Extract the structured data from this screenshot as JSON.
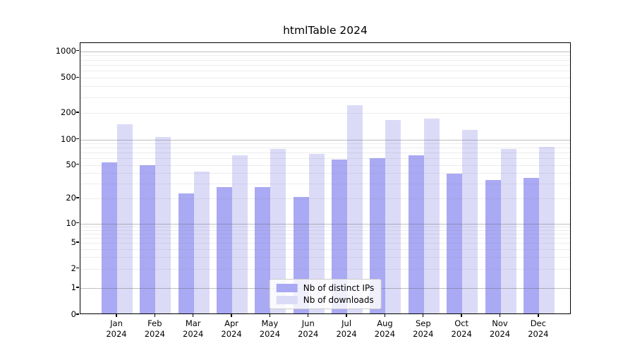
{
  "chart_data": {
    "type": "bar",
    "title": "htmlTable 2024",
    "categories": [
      "Jan",
      "Feb",
      "Mar",
      "Apr",
      "May",
      "Jun",
      "Jul",
      "Aug",
      "Sep",
      "Oct",
      "Nov",
      "Dec"
    ],
    "category_year": "2024",
    "series": [
      {
        "name": "Nb of distinct IPs",
        "color": "#a9a9f4",
        "values": [
          52,
          48,
          22,
          26,
          26,
          20,
          56,
          58,
          62,
          38,
          32,
          34
        ]
      },
      {
        "name": "Nb of downloads",
        "color": "#dbdbf8",
        "values": [
          145,
          104,
          40,
          63,
          74,
          65,
          235,
          160,
          167,
          124,
          74,
          79
        ]
      }
    ],
    "y_ticks": [
      0,
      1,
      2,
      5,
      10,
      20,
      50,
      100,
      200,
      500,
      1000
    ],
    "y_scale": "log",
    "ylim": [
      0,
      1000
    ],
    "xlabel": "",
    "ylabel": "",
    "grid": true,
    "legend_position": "lower center",
    "colors": {
      "major_grid": "#c3c3c3",
      "minor_grid": "#ececec",
      "spine": "#000000",
      "background": "#ffffff",
      "text": "#000000"
    }
  }
}
